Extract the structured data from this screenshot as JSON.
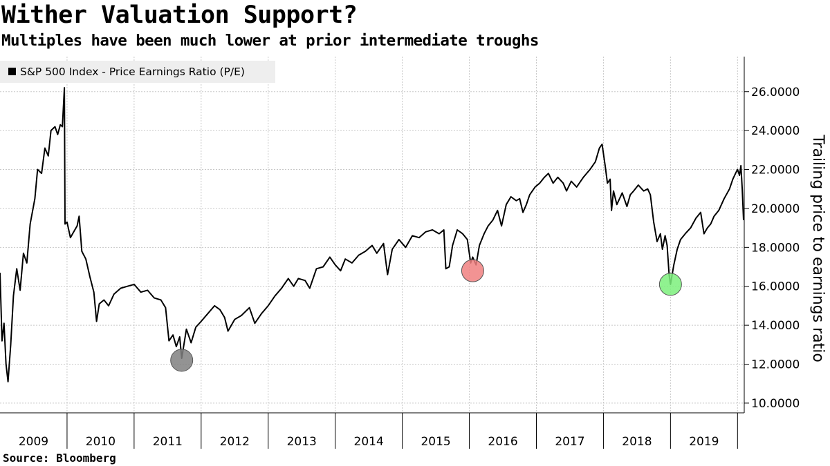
{
  "title": "Wither Valuation Support?",
  "subtitle": "Multiples have been much lower at prior intermediate troughs",
  "source": "Source: Bloomberg",
  "colors": {
    "line": "#000000",
    "grid": "#c8c8c8",
    "trough_2011": "#808080",
    "trough_2016": "#f08080",
    "trough_2018": "#7cf07c"
  },
  "chart_data": {
    "type": "line",
    "title": "Wither Valuation Support?",
    "subtitle": "Multiples have been much lower at prior intermediate troughs",
    "ylabel": "Trailing price to earnings ratio",
    "xlabel": "",
    "legend": "top-left",
    "grid": true,
    "y_ticks": [
      "10.0000",
      "12.0000",
      "14.0000",
      "16.0000",
      "18.0000",
      "20.0000",
      "22.0000",
      "24.0000",
      "26.0000"
    ],
    "ylim": [
      9.5,
      27.8
    ],
    "xlim": [
      2009.0,
      2020.1
    ],
    "x_tick_labels": [
      "2009",
      "2010",
      "2011",
      "2012",
      "2013",
      "2014",
      "2015",
      "2016",
      "2017",
      "2018",
      "2019"
    ],
    "series": [
      {
        "name": "S&P 500 Index - Price Earnings Ratio (P/E)",
        "points": [
          [
            2009.0,
            16.7
          ],
          [
            2009.03,
            13.2
          ],
          [
            2009.06,
            14.1
          ],
          [
            2009.09,
            12.0
          ],
          [
            2009.12,
            11.1
          ],
          [
            2009.16,
            13.0
          ],
          [
            2009.2,
            15.5
          ],
          [
            2009.25,
            16.9
          ],
          [
            2009.3,
            15.8
          ],
          [
            2009.35,
            17.7
          ],
          [
            2009.4,
            17.2
          ],
          [
            2009.45,
            19.2
          ],
          [
            2009.52,
            20.5
          ],
          [
            2009.56,
            22.0
          ],
          [
            2009.62,
            21.8
          ],
          [
            2009.67,
            23.1
          ],
          [
            2009.72,
            22.7
          ],
          [
            2009.76,
            24.0
          ],
          [
            2009.82,
            24.2
          ],
          [
            2009.86,
            23.8
          ],
          [
            2009.9,
            24.3
          ],
          [
            2009.93,
            24.2
          ],
          [
            2009.96,
            26.2
          ],
          [
            2009.97,
            19.2
          ],
          [
            2010.0,
            19.3
          ],
          [
            2010.05,
            18.5
          ],
          [
            2010.1,
            18.8
          ],
          [
            2010.15,
            19.1
          ],
          [
            2010.18,
            19.6
          ],
          [
            2010.22,
            17.8
          ],
          [
            2010.28,
            17.4
          ],
          [
            2010.34,
            16.5
          ],
          [
            2010.4,
            15.7
          ],
          [
            2010.44,
            14.2
          ],
          [
            2010.48,
            15.1
          ],
          [
            2010.55,
            15.3
          ],
          [
            2010.62,
            15.0
          ],
          [
            2010.7,
            15.6
          ],
          [
            2010.8,
            15.9
          ],
          [
            2010.9,
            16.0
          ],
          [
            2011.0,
            16.1
          ],
          [
            2011.1,
            15.7
          ],
          [
            2011.2,
            15.8
          ],
          [
            2011.3,
            15.4
          ],
          [
            2011.4,
            15.3
          ],
          [
            2011.47,
            14.9
          ],
          [
            2011.52,
            13.2
          ],
          [
            2011.58,
            13.5
          ],
          [
            2011.63,
            12.9
          ],
          [
            2011.68,
            13.4
          ],
          [
            2011.71,
            12.3
          ],
          [
            2011.78,
            13.8
          ],
          [
            2011.85,
            13.1
          ],
          [
            2011.92,
            13.9
          ],
          [
            2012.0,
            14.2
          ],
          [
            2012.1,
            14.6
          ],
          [
            2012.2,
            15.0
          ],
          [
            2012.28,
            14.8
          ],
          [
            2012.35,
            14.4
          ],
          [
            2012.4,
            13.7
          ],
          [
            2012.5,
            14.3
          ],
          [
            2012.6,
            14.5
          ],
          [
            2012.72,
            14.9
          ],
          [
            2012.8,
            14.1
          ],
          [
            2012.9,
            14.6
          ],
          [
            2013.0,
            15.0
          ],
          [
            2013.1,
            15.5
          ],
          [
            2013.2,
            15.9
          ],
          [
            2013.3,
            16.4
          ],
          [
            2013.38,
            16.0
          ],
          [
            2013.45,
            16.4
          ],
          [
            2013.55,
            16.3
          ],
          [
            2013.62,
            15.9
          ],
          [
            2013.72,
            16.9
          ],
          [
            2013.82,
            17.0
          ],
          [
            2013.92,
            17.5
          ],
          [
            2014.0,
            17.1
          ],
          [
            2014.08,
            16.8
          ],
          [
            2014.15,
            17.4
          ],
          [
            2014.25,
            17.2
          ],
          [
            2014.35,
            17.6
          ],
          [
            2014.45,
            17.8
          ],
          [
            2014.55,
            18.1
          ],
          [
            2014.62,
            17.7
          ],
          [
            2014.72,
            18.2
          ],
          [
            2014.78,
            16.6
          ],
          [
            2014.85,
            17.9
          ],
          [
            2014.95,
            18.4
          ],
          [
            2015.05,
            18.0
          ],
          [
            2015.15,
            18.6
          ],
          [
            2015.25,
            18.5
          ],
          [
            2015.35,
            18.8
          ],
          [
            2015.45,
            18.9
          ],
          [
            2015.55,
            18.7
          ],
          [
            2015.62,
            18.9
          ],
          [
            2015.65,
            16.9
          ],
          [
            2015.7,
            17.0
          ],
          [
            2015.75,
            18.1
          ],
          [
            2015.82,
            18.9
          ],
          [
            2015.9,
            18.7
          ],
          [
            2015.97,
            18.4
          ],
          [
            2016.02,
            17.2
          ],
          [
            2016.05,
            17.5
          ],
          [
            2016.1,
            17.1
          ],
          [
            2016.15,
            18.1
          ],
          [
            2016.22,
            18.7
          ],
          [
            2016.28,
            19.1
          ],
          [
            2016.35,
            19.4
          ],
          [
            2016.42,
            19.9
          ],
          [
            2016.48,
            19.1
          ],
          [
            2016.55,
            20.2
          ],
          [
            2016.62,
            20.6
          ],
          [
            2016.7,
            20.4
          ],
          [
            2016.75,
            20.5
          ],
          [
            2016.8,
            19.8
          ],
          [
            2016.85,
            20.2
          ],
          [
            2016.9,
            20.7
          ],
          [
            2016.98,
            21.1
          ],
          [
            2017.05,
            21.3
          ],
          [
            2017.12,
            21.6
          ],
          [
            2017.18,
            21.8
          ],
          [
            2017.25,
            21.3
          ],
          [
            2017.32,
            21.6
          ],
          [
            2017.4,
            21.3
          ],
          [
            2017.45,
            20.9
          ],
          [
            2017.52,
            21.4
          ],
          [
            2017.6,
            21.1
          ],
          [
            2017.7,
            21.6
          ],
          [
            2017.8,
            22.0
          ],
          [
            2017.88,
            22.4
          ],
          [
            2017.94,
            23.1
          ],
          [
            2017.98,
            23.3
          ],
          [
            2018.03,
            22.1
          ],
          [
            2018.06,
            21.3
          ],
          [
            2018.1,
            21.5
          ],
          [
            2018.12,
            19.9
          ],
          [
            2018.15,
            20.9
          ],
          [
            2018.2,
            20.2
          ],
          [
            2018.28,
            20.8
          ],
          [
            2018.35,
            20.1
          ],
          [
            2018.4,
            20.7
          ],
          [
            2018.45,
            20.9
          ],
          [
            2018.52,
            21.2
          ],
          [
            2018.6,
            20.9
          ],
          [
            2018.66,
            21.0
          ],
          [
            2018.7,
            20.7
          ],
          [
            2018.75,
            19.3
          ],
          [
            2018.8,
            18.3
          ],
          [
            2018.85,
            18.7
          ],
          [
            2018.88,
            17.9
          ],
          [
            2018.92,
            18.6
          ],
          [
            2018.95,
            18.1
          ],
          [
            2018.98,
            16.6
          ],
          [
            2019.0,
            16.1
          ],
          [
            2019.05,
            17.1
          ],
          [
            2019.1,
            17.9
          ],
          [
            2019.15,
            18.4
          ],
          [
            2019.22,
            18.7
          ],
          [
            2019.3,
            19.0
          ],
          [
            2019.38,
            19.5
          ],
          [
            2019.45,
            19.8
          ],
          [
            2019.5,
            18.7
          ],
          [
            2019.55,
            19.0
          ],
          [
            2019.6,
            19.2
          ],
          [
            2019.65,
            19.6
          ],
          [
            2019.72,
            19.9
          ],
          [
            2019.8,
            20.5
          ],
          [
            2019.88,
            21.0
          ],
          [
            2019.93,
            21.5
          ],
          [
            2019.97,
            21.8
          ],
          [
            2020.0,
            22.0
          ],
          [
            2020.03,
            21.7
          ],
          [
            2020.05,
            22.2
          ],
          [
            2020.07,
            21.0
          ],
          [
            2020.09,
            19.4
          ]
        ]
      }
    ],
    "annotations": [
      {
        "name": "trough-2011",
        "x": 2011.71,
        "y": 12.2,
        "color_key": "trough_2011"
      },
      {
        "name": "trough-2016",
        "x": 2016.05,
        "y": 16.8,
        "color_key": "trough_2016"
      },
      {
        "name": "trough-2018",
        "x": 2019.0,
        "y": 16.1,
        "color_key": "trough_2018"
      }
    ]
  }
}
